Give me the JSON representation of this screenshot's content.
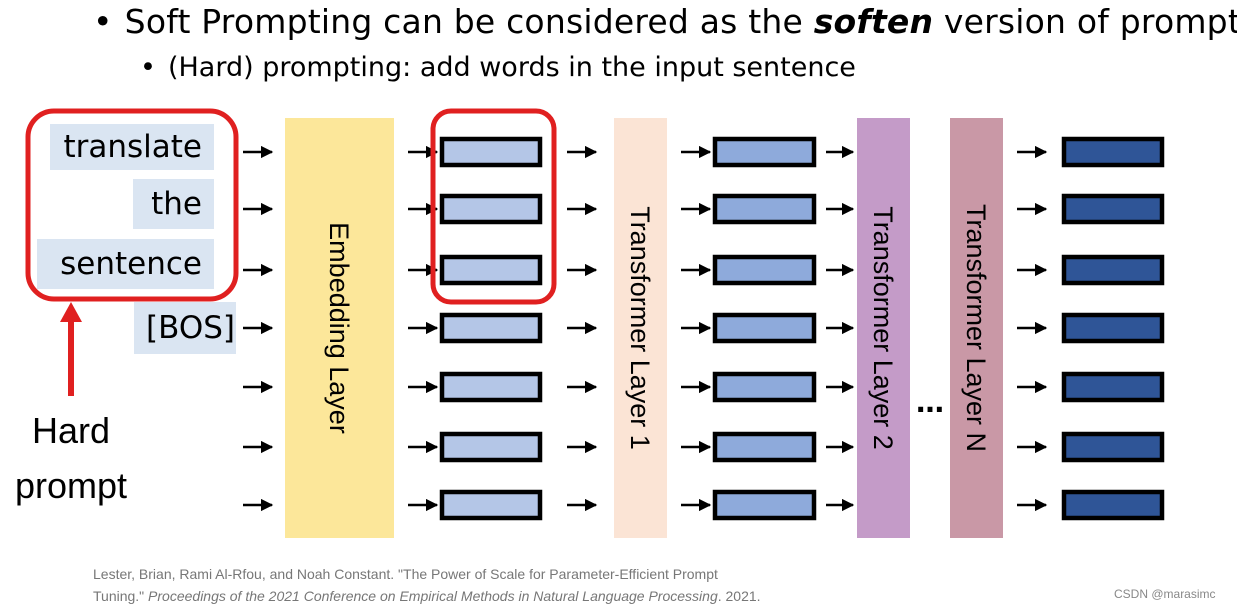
{
  "bullets": {
    "line1_pre": "Soft Prompting can be considered as the ",
    "line1_em": "soften",
    "line1_post": " version of prompting",
    "line2": "(Hard) prompting: add words in the input sentence"
  },
  "tokens": [
    "translate",
    "the",
    "sentence",
    "[BOS]"
  ],
  "layers": [
    "Embedding Layer",
    "Transformer Layer 1",
    "Transformer Layer 2",
    "Transformer Layer N"
  ],
  "layer_colors": {
    "embedding": "#fce79a",
    "transformer1": "#fbe4d5",
    "transformer2": "#c49bc8",
    "transformerN": "#c998a6"
  },
  "vector_colors": {
    "embedding_out": "#b4c6e7",
    "t1_out": "#8eaadb",
    "final_out": "#2f5597"
  },
  "highlight_color": "#e02020",
  "ellipsis": "…",
  "hard_prompt_label": {
    "line1": "Hard",
    "line2": "prompt"
  },
  "citation": {
    "line1": "Lester, Brian, Rami Al-Rfou, and Noah Constant. \"The Power of Scale for Parameter-Efficient Prompt",
    "line2_pre": "Tuning.\" ",
    "line2_em": "Proceedings of the 2021 Conference on Empirical Methods in Natural Language Processing",
    "line2_post": ". 2021."
  },
  "watermark": "CSDN @marasimc"
}
